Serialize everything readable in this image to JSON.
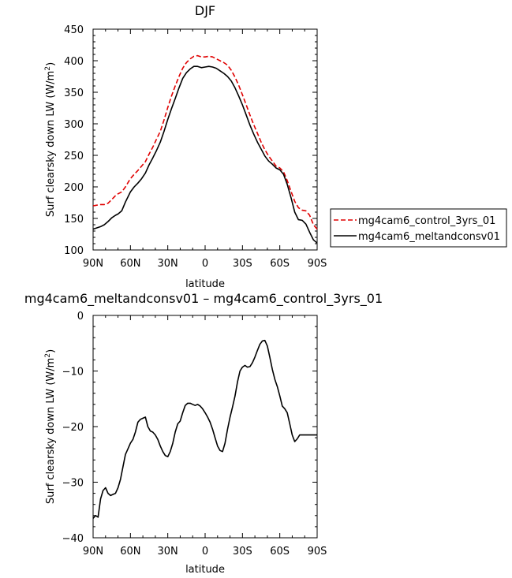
{
  "chart_data": [
    {
      "type": "line",
      "title": "DJF",
      "xlabel": "latitude",
      "ylabel": "Surf clearsky down LW (W/m²)",
      "xlim": [
        90,
        -90
      ],
      "ylim": [
        100,
        450
      ],
      "x_ticks": [
        90,
        60,
        30,
        0,
        -30,
        -60,
        -90
      ],
      "x_tick_labels": [
        "90N",
        "60N",
        "30N",
        "0",
        "30S",
        "60S",
        "90S"
      ],
      "y_ticks": [
        100,
        150,
        200,
        250,
        300,
        350,
        400,
        450
      ],
      "y_tick_labels": [
        "100",
        "150",
        "200",
        "250",
        "300",
        "350",
        "400",
        "450"
      ],
      "legend_position": "right",
      "series": [
        {
          "name": "mg4cam6_control_3yrs_01",
          "color": "#e00000",
          "dash": "dashed",
          "x": [
            90,
            87,
            84,
            81,
            78,
            75,
            72,
            70,
            67,
            64,
            60,
            57,
            54,
            51,
            48,
            45,
            42,
            39,
            36,
            33,
            30,
            27,
            24,
            21,
            18,
            15,
            12,
            9,
            6,
            3,
            0,
            -3,
            -6,
            -9,
            -12,
            -15,
            -18,
            -21,
            -24,
            -27,
            -30,
            -33,
            -36,
            -39,
            -42,
            -45,
            -48,
            -51,
            -54,
            -57,
            -60,
            -63,
            -66,
            -69,
            -72,
            -75,
            -78,
            -81,
            -84,
            -87,
            -90
          ],
          "y": [
            170,
            171,
            172,
            172,
            174,
            180,
            186,
            189,
            192,
            200,
            213,
            220,
            226,
            233,
            240,
            252,
            263,
            276,
            288,
            306,
            326,
            344,
            360,
            375,
            388,
            397,
            403,
            407,
            408,
            406,
            406,
            407,
            406,
            403,
            400,
            397,
            393,
            385,
            374,
            361,
            346,
            330,
            314,
            299,
            285,
            271,
            259,
            249,
            241,
            233,
            230,
            224,
            210,
            193,
            177,
            167,
            163,
            162,
            155,
            140,
            133
          ]
        },
        {
          "name": "mg4cam6_meltandconsv01",
          "color": "#000000",
          "dash": "solid",
          "x": [
            90,
            87,
            84,
            81,
            78,
            75,
            72,
            70,
            67,
            64,
            60,
            57,
            54,
            51,
            48,
            45,
            42,
            39,
            36,
            33,
            30,
            27,
            24,
            21,
            18,
            15,
            12,
            9,
            6,
            3,
            0,
            -3,
            -6,
            -9,
            -12,
            -15,
            -18,
            -21,
            -24,
            -27,
            -30,
            -33,
            -36,
            -39,
            -42,
            -45,
            -48,
            -51,
            -54,
            -57,
            -60,
            -63,
            -66,
            -69,
            -72,
            -75,
            -78,
            -81,
            -84,
            -87,
            -90
          ],
          "y": [
            133,
            135,
            137,
            140,
            145,
            151,
            155,
            157,
            162,
            176,
            192,
            200,
            206,
            213,
            222,
            235,
            246,
            258,
            271,
            288,
            307,
            324,
            340,
            357,
            372,
            381,
            387,
            391,
            391,
            389,
            390,
            391,
            390,
            388,
            384,
            380,
            375,
            368,
            357,
            344,
            330,
            314,
            298,
            284,
            271,
            260,
            249,
            241,
            236,
            230,
            227,
            220,
            204,
            183,
            160,
            148,
            147,
            141,
            128,
            116,
            111
          ]
        }
      ]
    },
    {
      "type": "line",
      "title": "mg4cam6_meltandconsv01 – mg4cam6_control_3yrs_01",
      "xlabel": "latitude",
      "ylabel": "Surf clearsky down LW (W/m²)",
      "xlim": [
        90,
        -90
      ],
      "ylim": [
        -40,
        0
      ],
      "x_ticks": [
        90,
        60,
        30,
        0,
        -30,
        -60,
        -90
      ],
      "x_tick_labels": [
        "90N",
        "60N",
        "30N",
        "0",
        "30S",
        "60S",
        "90S"
      ],
      "y_ticks": [
        -40,
        -30,
        -20,
        -10,
        0
      ],
      "y_tick_labels": [
        "−40",
        "−30",
        "−20",
        "−10",
        "0"
      ],
      "series": [
        {
          "color": "#000000",
          "dash": "solid",
          "x": [
            90,
            88,
            86,
            84,
            82,
            80,
            78,
            76,
            74,
            72,
            70,
            68,
            66,
            64,
            62,
            60,
            58,
            56,
            54,
            52,
            50,
            48,
            46,
            44,
            42,
            40,
            38,
            36,
            34,
            32,
            30,
            28,
            26,
            24,
            22,
            20,
            18,
            16,
            14,
            12,
            10,
            8,
            6,
            4,
            2,
            0,
            -2,
            -4,
            -6,
            -8,
            -10,
            -12,
            -14,
            -16,
            -18,
            -20,
            -22,
            -24,
            -26,
            -28,
            -30,
            -32,
            -34,
            -36,
            -38,
            -40,
            -42,
            -44,
            -46,
            -48,
            -50,
            -52,
            -54,
            -56,
            -58,
            -60,
            -62,
            -64,
            -66,
            -68,
            -70,
            -72,
            -74,
            -76,
            -78,
            -80,
            -82,
            -84,
            -86,
            -88,
            -90
          ],
          "y": [
            -36.5,
            -36.0,
            -36.3,
            -33.0,
            -31.5,
            -31.0,
            -32.0,
            -32.4,
            -32.2,
            -32.0,
            -31.0,
            -29.5,
            -27.2,
            -25.0,
            -24.0,
            -23.0,
            -22.3,
            -21.0,
            -19.2,
            -18.7,
            -18.5,
            -18.3,
            -20.0,
            -20.8,
            -21.0,
            -21.5,
            -22.3,
            -23.5,
            -24.5,
            -25.2,
            -25.4,
            -24.5,
            -23.0,
            -21.0,
            -19.5,
            -19.0,
            -17.5,
            -16.2,
            -15.8,
            -15.8,
            -16.0,
            -16.2,
            -16.0,
            -16.3,
            -16.8,
            -17.5,
            -18.3,
            -19.2,
            -20.5,
            -22.0,
            -23.5,
            -24.3,
            -24.5,
            -23.0,
            -20.5,
            -18.3,
            -16.5,
            -14.5,
            -12.0,
            -10.0,
            -9.3,
            -9.0,
            -9.3,
            -9.2,
            -8.5,
            -7.5,
            -6.3,
            -5.2,
            -4.6,
            -4.5,
            -5.5,
            -7.5,
            -9.7,
            -11.5,
            -12.8,
            -14.5,
            -16.3,
            -16.8,
            -17.5,
            -19.5,
            -21.5,
            -22.7,
            -22.2,
            -21.5,
            -21.5,
            -21.5,
            -21.5,
            -21.5,
            -21.5,
            -21.5,
            -21.5
          ]
        }
      ]
    }
  ]
}
